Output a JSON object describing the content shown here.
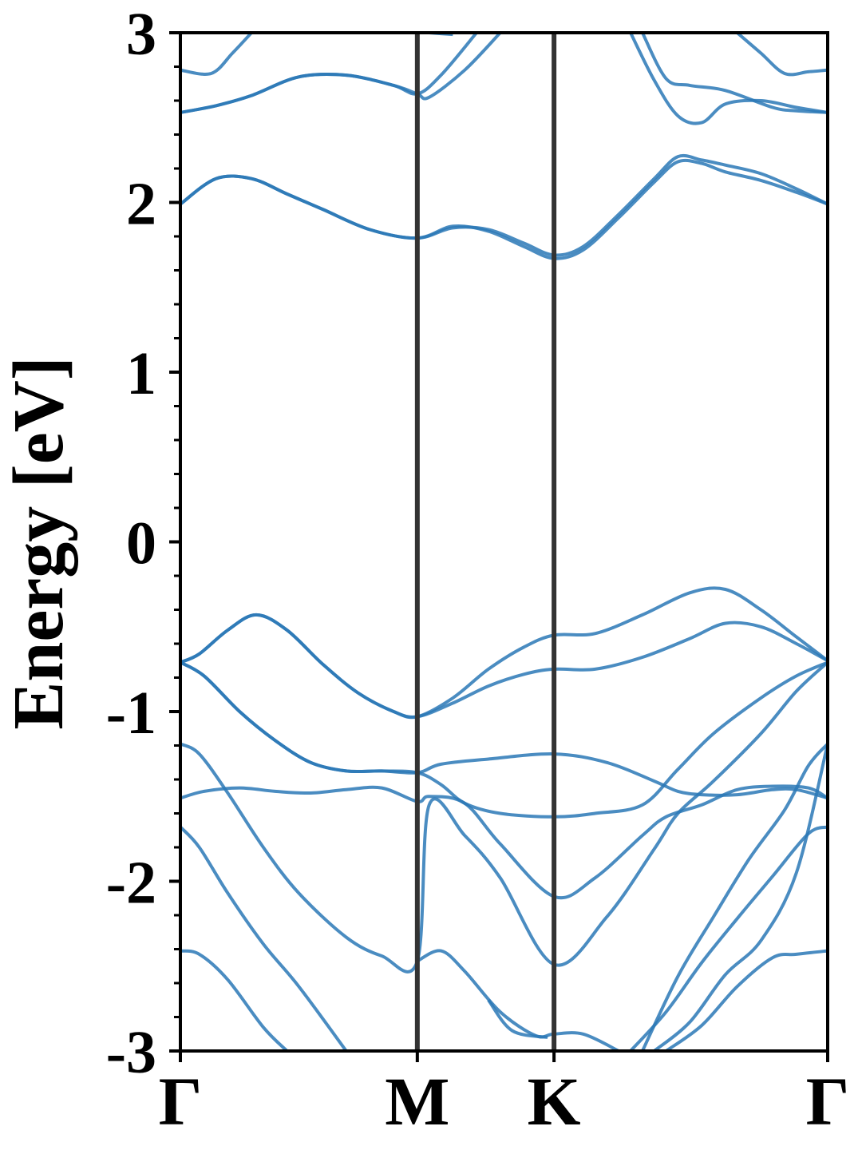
{
  "chart_data": {
    "type": "line",
    "title": "",
    "ylabel": "Energy [eV]",
    "xlabel": "",
    "ylim": [
      -3,
      3
    ],
    "yticks": [
      "3",
      "2",
      "1",
      "0",
      "-1",
      "-2",
      "-3"
    ],
    "ytick_values": [
      3,
      2,
      1,
      0,
      -1,
      -2,
      -3
    ],
    "x_kpoints": [
      {
        "label": "Γ",
        "x": 0.0
      },
      {
        "label": "M",
        "x": 1.0
      },
      {
        "label": "K",
        "x": 1.577
      },
      {
        "label": "Γ",
        "x": 2.732
      }
    ],
    "xlim": [
      0,
      2.732
    ],
    "grid": false,
    "colors": {
      "band": "#2a78b6",
      "kpoint_line": "#333333",
      "axis": "#000000"
    },
    "series": [
      {
        "x": [
          0,
          0.15,
          0.3,
          0.45,
          0.6,
          0.8,
          1.0,
          1.15,
          1.3,
          1.45,
          1.577,
          1.7,
          1.85,
          2.0,
          2.1,
          2.2,
          2.3,
          2.45,
          2.6,
          2.732
        ],
        "values": [
          1.99,
          2.14,
          2.14,
          2.05,
          1.96,
          1.84,
          1.79,
          1.86,
          1.83,
          1.74,
          1.67,
          1.72,
          1.91,
          2.12,
          2.24,
          2.23,
          2.18,
          2.13,
          2.06,
          1.99
        ]
      },
      {
        "x": [
          0,
          0.15,
          0.3,
          0.45,
          0.6,
          0.8,
          1.0,
          1.15,
          1.3,
          1.45,
          1.577,
          1.7,
          1.85,
          2.0,
          2.1,
          2.2,
          2.3,
          2.45,
          2.6,
          2.732
        ],
        "values": [
          1.99,
          2.14,
          2.14,
          2.05,
          1.96,
          1.84,
          1.79,
          1.85,
          1.84,
          1.76,
          1.69,
          1.74,
          1.93,
          2.14,
          2.27,
          2.25,
          2.22,
          2.17,
          2.08,
          1.99
        ]
      },
      {
        "x": [
          0,
          0.15,
          0.3,
          0.5,
          0.7,
          0.9,
          1.0,
          1.1,
          1.25
        ],
        "values": [
          2.53,
          2.57,
          2.63,
          2.74,
          2.75,
          2.69,
          2.64,
          2.75,
          3.0
        ]
      },
      {
        "x": [
          0,
          0.15,
          0.3,
          0.5,
          0.7,
          0.9,
          1.0,
          1.05,
          1.2,
          1.35
        ],
        "values": [
          2.53,
          2.57,
          2.63,
          2.74,
          2.75,
          2.69,
          2.64,
          2.62,
          2.78,
          3.0
        ]
      },
      {
        "x": [
          0,
          0.13,
          0.22,
          0.3
        ],
        "values": [
          2.78,
          2.76,
          2.88,
          3.0
        ]
      },
      {
        "x": [
          1.05,
          1.15
        ],
        "values": [
          3.0,
          2.99
        ]
      },
      {
        "x": [
          1.95,
          2.05,
          2.15,
          2.3,
          2.5,
          2.6,
          2.732
        ],
        "values": [
          3.0,
          2.73,
          2.69,
          2.66,
          2.56,
          2.54,
          2.53
        ]
      },
      {
        "x": [
          1.9,
          2.0,
          2.1,
          2.2,
          2.3,
          2.45,
          2.6,
          2.732
        ],
        "values": [
          3.0,
          2.72,
          2.51,
          2.47,
          2.58,
          2.6,
          2.56,
          2.53
        ]
      },
      {
        "x": [
          2.35,
          2.45,
          2.55,
          2.65,
          2.732
        ],
        "values": [
          3.0,
          2.88,
          2.76,
          2.77,
          2.78
        ]
      },
      {
        "x": [
          0,
          0.08,
          0.2,
          0.32,
          0.45,
          0.6,
          0.75,
          0.9,
          1.0,
          1.15,
          1.3,
          1.45,
          1.577,
          1.75,
          1.95,
          2.15,
          2.3,
          2.45,
          2.6,
          2.732
        ],
        "values": [
          -0.71,
          -0.66,
          -0.52,
          -0.43,
          -0.52,
          -0.72,
          -0.89,
          -1.0,
          -1.03,
          -0.92,
          -0.75,
          -0.62,
          -0.55,
          -0.54,
          -0.43,
          -0.3,
          -0.28,
          -0.4,
          -0.56,
          -0.7
        ]
      },
      {
        "x": [
          0,
          0.08,
          0.2,
          0.32,
          0.45,
          0.6,
          0.75,
          0.9,
          1.0,
          1.15,
          1.3,
          1.45,
          1.577,
          1.75,
          1.95,
          2.15,
          2.3,
          2.45,
          2.6,
          2.732
        ],
        "values": [
          -0.71,
          -0.66,
          -0.52,
          -0.43,
          -0.52,
          -0.72,
          -0.89,
          -1.0,
          -1.03,
          -0.95,
          -0.85,
          -0.78,
          -0.75,
          -0.75,
          -0.68,
          -0.57,
          -0.48,
          -0.5,
          -0.6,
          -0.7
        ]
      },
      {
        "x": [
          0,
          0.1,
          0.25,
          0.4,
          0.55,
          0.7,
          0.85,
          1.0,
          1.1,
          1.3,
          1.577,
          1.8,
          2.0,
          2.1,
          2.2,
          2.35,
          2.5,
          2.6,
          2.732
        ],
        "values": [
          -0.71,
          -0.79,
          -1.0,
          -1.17,
          -1.3,
          -1.35,
          -1.35,
          -1.36,
          -1.31,
          -1.28,
          -1.25,
          -1.3,
          -1.41,
          -1.47,
          -1.49,
          -1.49,
          -1.46,
          -1.46,
          -1.51
        ]
      },
      {
        "x": [
          0,
          0.1,
          0.25,
          0.4,
          0.55,
          0.7,
          0.85,
          1.0,
          1.1,
          1.2,
          1.35,
          1.577,
          1.75,
          1.95,
          2.1,
          2.25,
          2.45,
          2.6,
          2.732
        ],
        "values": [
          -0.71,
          -0.79,
          -1.0,
          -1.17,
          -1.3,
          -1.35,
          -1.35,
          -1.36,
          -1.43,
          -1.54,
          -1.6,
          -1.62,
          -1.6,
          -1.55,
          -1.34,
          -1.13,
          -0.92,
          -0.79,
          -0.71
        ]
      },
      {
        "x": [
          0,
          0.1,
          0.25,
          0.4,
          0.55,
          0.7,
          0.85,
          1.0,
          1.05,
          1.2,
          1.35,
          1.577,
          1.75,
          1.95,
          2.05,
          2.2,
          2.35,
          2.5,
          2.65,
          2.732
        ],
        "values": [
          -1.51,
          -1.47,
          -1.45,
          -1.47,
          -1.48,
          -1.46,
          -1.45,
          -1.53,
          -1.5,
          -1.54,
          -1.78,
          -2.09,
          -1.98,
          -1.73,
          -1.62,
          -1.55,
          -1.46,
          -1.44,
          -1.45,
          -1.51
        ]
      },
      {
        "x": [
          0,
          0.08,
          0.2,
          0.35,
          0.5,
          0.7,
          0.85,
          1.0,
          1.05,
          1.2,
          1.35,
          1.577,
          1.8,
          2.0,
          2.1,
          2.25,
          2.45,
          2.6,
          2.732
        ],
        "values": [
          -1.19,
          -1.25,
          -1.48,
          -1.8,
          -2.07,
          -2.33,
          -2.44,
          -2.47,
          -1.55,
          -1.73,
          -1.98,
          -2.49,
          -2.21,
          -1.81,
          -1.6,
          -1.41,
          -1.13,
          -0.88,
          -0.71
        ]
      },
      {
        "x": [
          1.0,
          1.1,
          1.2,
          1.35,
          1.5,
          1.577,
          1.7,
          1.85
        ],
        "values": [
          -2.47,
          -2.41,
          -2.53,
          -2.77,
          -2.91,
          -2.9,
          -2.9,
          -3.0
        ]
      },
      {
        "x": [
          1.3,
          1.4,
          1.55
        ],
        "values": [
          -2.7,
          -2.88,
          -2.92
        ]
      },
      {
        "x": [
          0,
          0.08,
          0.2,
          0.35,
          0.5,
          0.7
        ],
        "values": [
          -1.68,
          -1.8,
          -2.07,
          -2.37,
          -2.62,
          -3.0
        ]
      },
      {
        "x": [
          0,
          0.08,
          0.2,
          0.35,
          0.45
        ],
        "values": [
          -2.41,
          -2.43,
          -2.58,
          -2.86,
          -3.0
        ]
      },
      {
        "x": [
          1.9,
          2.05,
          2.2,
          2.35,
          2.5,
          2.65,
          2.732
        ],
        "values": [
          -3.0,
          -2.77,
          -2.48,
          -2.22,
          -1.97,
          -1.72,
          -1.68
        ]
      },
      {
        "x": [
          1.95,
          2.1,
          2.25,
          2.4,
          2.55,
          2.65,
          2.732
        ],
        "values": [
          -3.0,
          -2.56,
          -2.21,
          -1.87,
          -1.58,
          -1.32,
          -1.19
        ]
      },
      {
        "x": [
          2.05,
          2.2,
          2.35,
          2.5,
          2.6,
          2.732
        ],
        "values": [
          -3.0,
          -2.85,
          -2.62,
          -2.45,
          -2.43,
          -2.41
        ]
      },
      {
        "x": [
          2.0,
          2.15,
          2.3,
          2.45,
          2.6,
          2.732
        ],
        "values": [
          -3.0,
          -2.83,
          -2.55,
          -2.35,
          -1.95,
          -1.19
        ]
      }
    ]
  }
}
